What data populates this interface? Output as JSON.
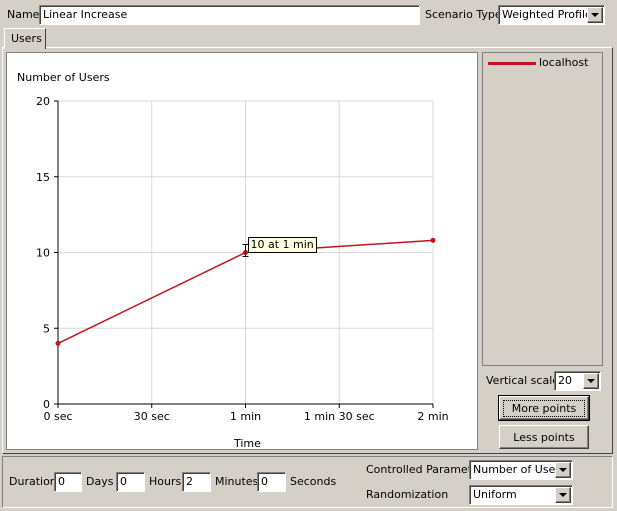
{
  "header": {
    "name_label": "Name",
    "name_value": "Linear Increase",
    "scenario_type_label": "Scenario Type",
    "scenario_type_value": "Weighted Profiles"
  },
  "tabs": [
    {
      "label": "Users",
      "selected": true
    }
  ],
  "chart_data": {
    "type": "line",
    "ylabel": "Number of Users",
    "xlabel": "Time",
    "x_ticks": [
      "0 sec",
      "30 sec",
      "1 min",
      "1 min 30 sec",
      "2 min"
    ],
    "y_ticks": [
      "0",
      "5",
      "10",
      "15",
      "20"
    ],
    "ylim": [
      0,
      20
    ],
    "xlim_seconds": [
      0,
      120
    ],
    "grid": true,
    "series": [
      {
        "name": "localhost",
        "color": "#c0141c",
        "points": [
          {
            "x_seconds": 0,
            "y": 4
          },
          {
            "x_seconds": 60,
            "y": 10
          },
          {
            "x_seconds": 120,
            "y": 10.8
          }
        ]
      }
    ],
    "tooltip": {
      "text": "10 at 1 min",
      "x_seconds": 60,
      "y": 10
    }
  },
  "legend": {
    "items": [
      {
        "label": "localhost",
        "color": "#c0141c"
      }
    ]
  },
  "side_panel": {
    "vertical_scale_label": "Vertical scale",
    "vertical_scale_value": "20",
    "more_points_label": "More points",
    "less_points_label": "Less points"
  },
  "footer": {
    "duration_label": "Duration",
    "days_value": "0",
    "days_label": "Days",
    "hours_value": "0",
    "hours_label": "Hours",
    "minutes_value": "2",
    "minutes_label": "Minutes",
    "seconds_value": "0",
    "seconds_label": "Seconds",
    "controlled_parameter_label": "Controlled Parameter",
    "controlled_parameter_value": "Number of Users",
    "randomization_label": "Randomization",
    "randomization_value": "Uniform"
  }
}
